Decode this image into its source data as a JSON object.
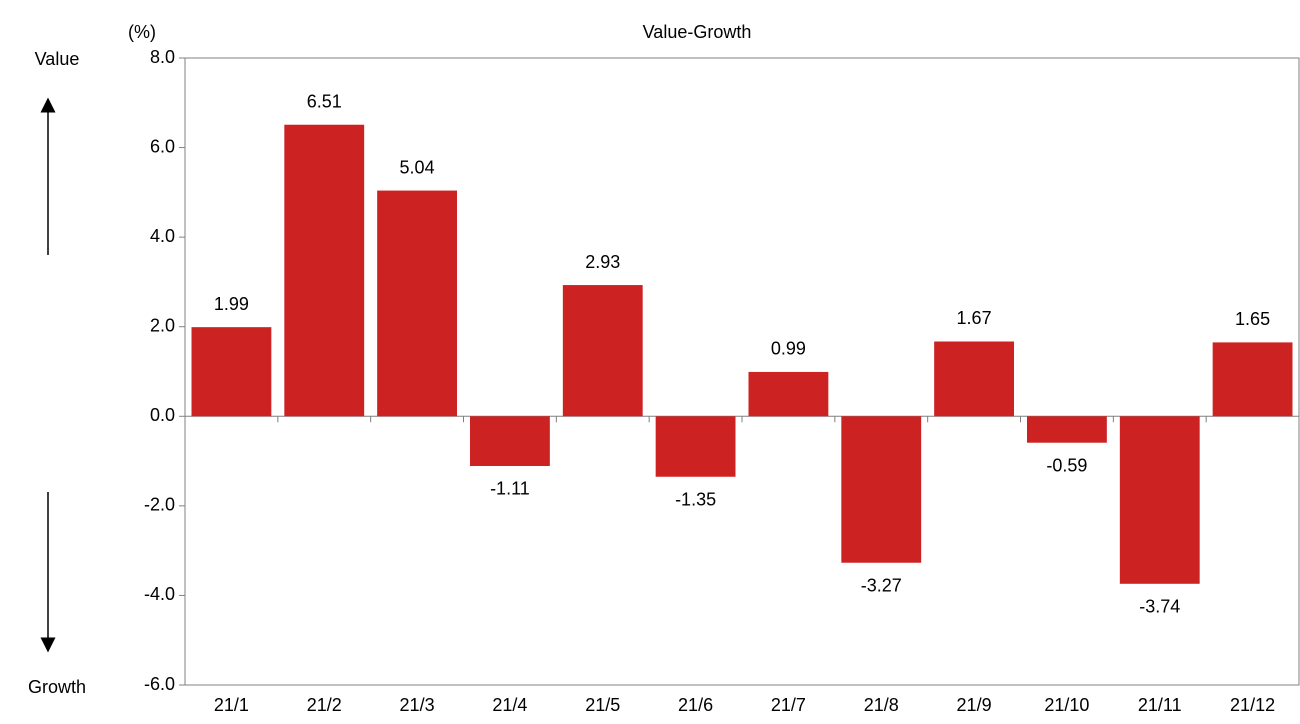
{
  "chart_data": {
    "type": "bar",
    "title": "Value-Growth",
    "ylabel": "(%)",
    "annotations": [
      "Value",
      "Growth"
    ],
    "categories": [
      "21/1",
      "21/2",
      "21/3",
      "21/4",
      "21/5",
      "21/6",
      "21/7",
      "21/8",
      "21/9",
      "21/10",
      "21/11",
      "21/12"
    ],
    "values": [
      1.99,
      6.51,
      5.04,
      -1.11,
      2.93,
      -1.35,
      0.99,
      -3.27,
      1.67,
      -0.59,
      -3.74,
      1.65
    ],
    "color": "#cc2222",
    "ylim": [
      -6,
      8
    ],
    "yticks": [
      {
        "value": -6,
        "label": "-6.0"
      },
      {
        "value": -4,
        "label": "-4.0"
      },
      {
        "value": -2,
        "label": "-2.0"
      },
      {
        "value": 0,
        "label": "0.0"
      },
      {
        "value": 2,
        "label": "2.0"
      },
      {
        "value": 4,
        "label": "4.0"
      },
      {
        "value": 6,
        "label": "6.0"
      },
      {
        "value": 8,
        "label": "8.0"
      }
    ],
    "grid": false
  }
}
